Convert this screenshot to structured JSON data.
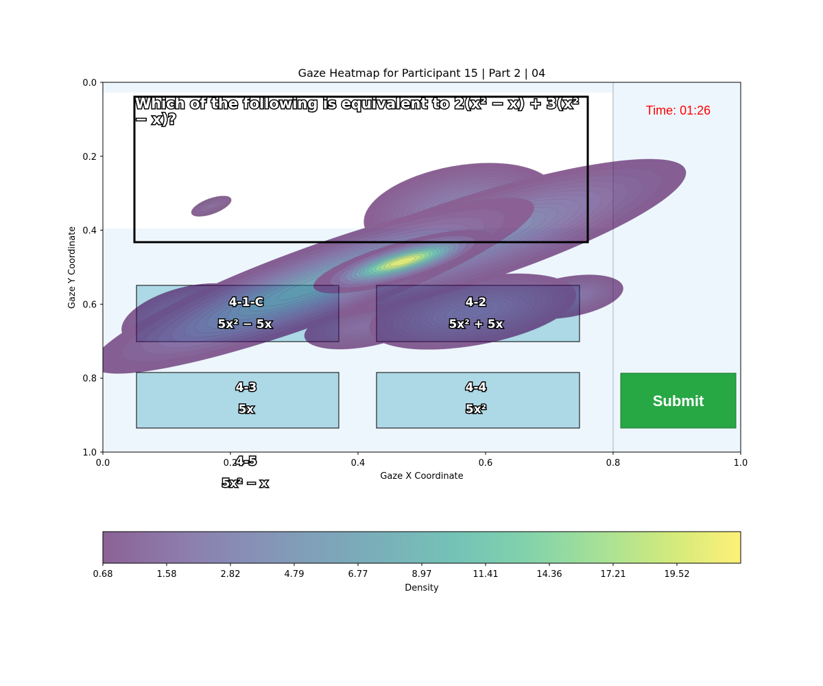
{
  "colors": {
    "panel_bg": "#eef6fd",
    "option_fill": "#add8e6",
    "submit_fill": "#28a745",
    "timer_color": "#ff0000",
    "divider": "#c8d4de",
    "colormap": [
      "#440154",
      "#482878",
      "#3e4989",
      "#31688e",
      "#26828e",
      "#1f9e89",
      "#35b779",
      "#6ece58",
      "#b5de2b",
      "#fde725"
    ]
  },
  "chart_data": {
    "type": "heatmap",
    "title": "Gaze Heatmap for Participant 15 | Part 2 | 04",
    "xlabel": "Gaze X Coordinate",
    "ylabel": "Gaze Y Coordinate",
    "xlim": [
      0.0,
      1.0
    ],
    "ylim": [
      1.0,
      0.0
    ],
    "x_ticks": [
      "0.0",
      "0.2",
      "0.4",
      "0.6",
      "0.8",
      "1.0"
    ],
    "y_ticks": [
      "0.0",
      "0.2",
      "0.4",
      "0.6",
      "0.8",
      "1.0"
    ],
    "colorbar": {
      "label": "Density",
      "ticks": [
        "0.68",
        "1.58",
        "2.82",
        "4.79",
        "6.77",
        "8.97",
        "11.41",
        "14.36",
        "17.21",
        "19.52"
      ],
      "tick_values": [
        0.68,
        1.58,
        2.82,
        4.79,
        6.77,
        8.97,
        11.41,
        14.36,
        17.21,
        19.52
      ],
      "min": 0.68,
      "max": 22.0
    },
    "density_blobs": [
      {
        "x": 0.47,
        "y": 0.485,
        "sx": 0.055,
        "sy": 0.02,
        "rot": -16,
        "peak": 22.0
      },
      {
        "x": 0.33,
        "y": 0.55,
        "sx": 0.16,
        "sy": 0.045,
        "rot": -20,
        "peak": 9.5
      },
      {
        "x": 0.57,
        "y": 0.43,
        "sx": 0.17,
        "sy": 0.055,
        "rot": -18,
        "peak": 6.5
      },
      {
        "x": 0.56,
        "y": 0.34,
        "sx": 0.08,
        "sy": 0.06,
        "rot": -10,
        "peak": 4.2
      },
      {
        "x": 0.13,
        "y": 0.63,
        "sx": 0.055,
        "sy": 0.04,
        "rot": -15,
        "peak": 4.0
      },
      {
        "x": 0.58,
        "y": 0.62,
        "sx": 0.09,
        "sy": 0.05,
        "rot": -10,
        "peak": 3.6
      },
      {
        "x": 0.73,
        "y": 0.335,
        "sx": 0.08,
        "sy": 0.035,
        "rot": -14,
        "peak": 3.2
      },
      {
        "x": 0.73,
        "y": 0.58,
        "sx": 0.048,
        "sy": 0.03,
        "rot": -10,
        "peak": 3.5
      },
      {
        "x": 0.41,
        "y": 0.66,
        "sx": 0.06,
        "sy": 0.035,
        "rot": -10,
        "peak": 2.4
      },
      {
        "x": 0.17,
        "y": 0.335,
        "sx": 0.022,
        "sy": 0.014,
        "rot": -20,
        "peak": 2.1
      }
    ]
  },
  "question": {
    "line1": "Which of the following is equivalent to 2(x² − x) + 3(x²",
    "line2": "− x)?"
  },
  "timer": "Time: 01:26",
  "options": [
    {
      "id": "4-1-C",
      "text": "5x² − 5x"
    },
    {
      "id": "4-2",
      "text": "5x² + 5x"
    },
    {
      "id": "4-3",
      "text": "5x"
    },
    {
      "id": "4-4",
      "text": "5x²"
    },
    {
      "id": "4-5",
      "text": "5x² − x"
    }
  ],
  "submit_label": "Submit"
}
